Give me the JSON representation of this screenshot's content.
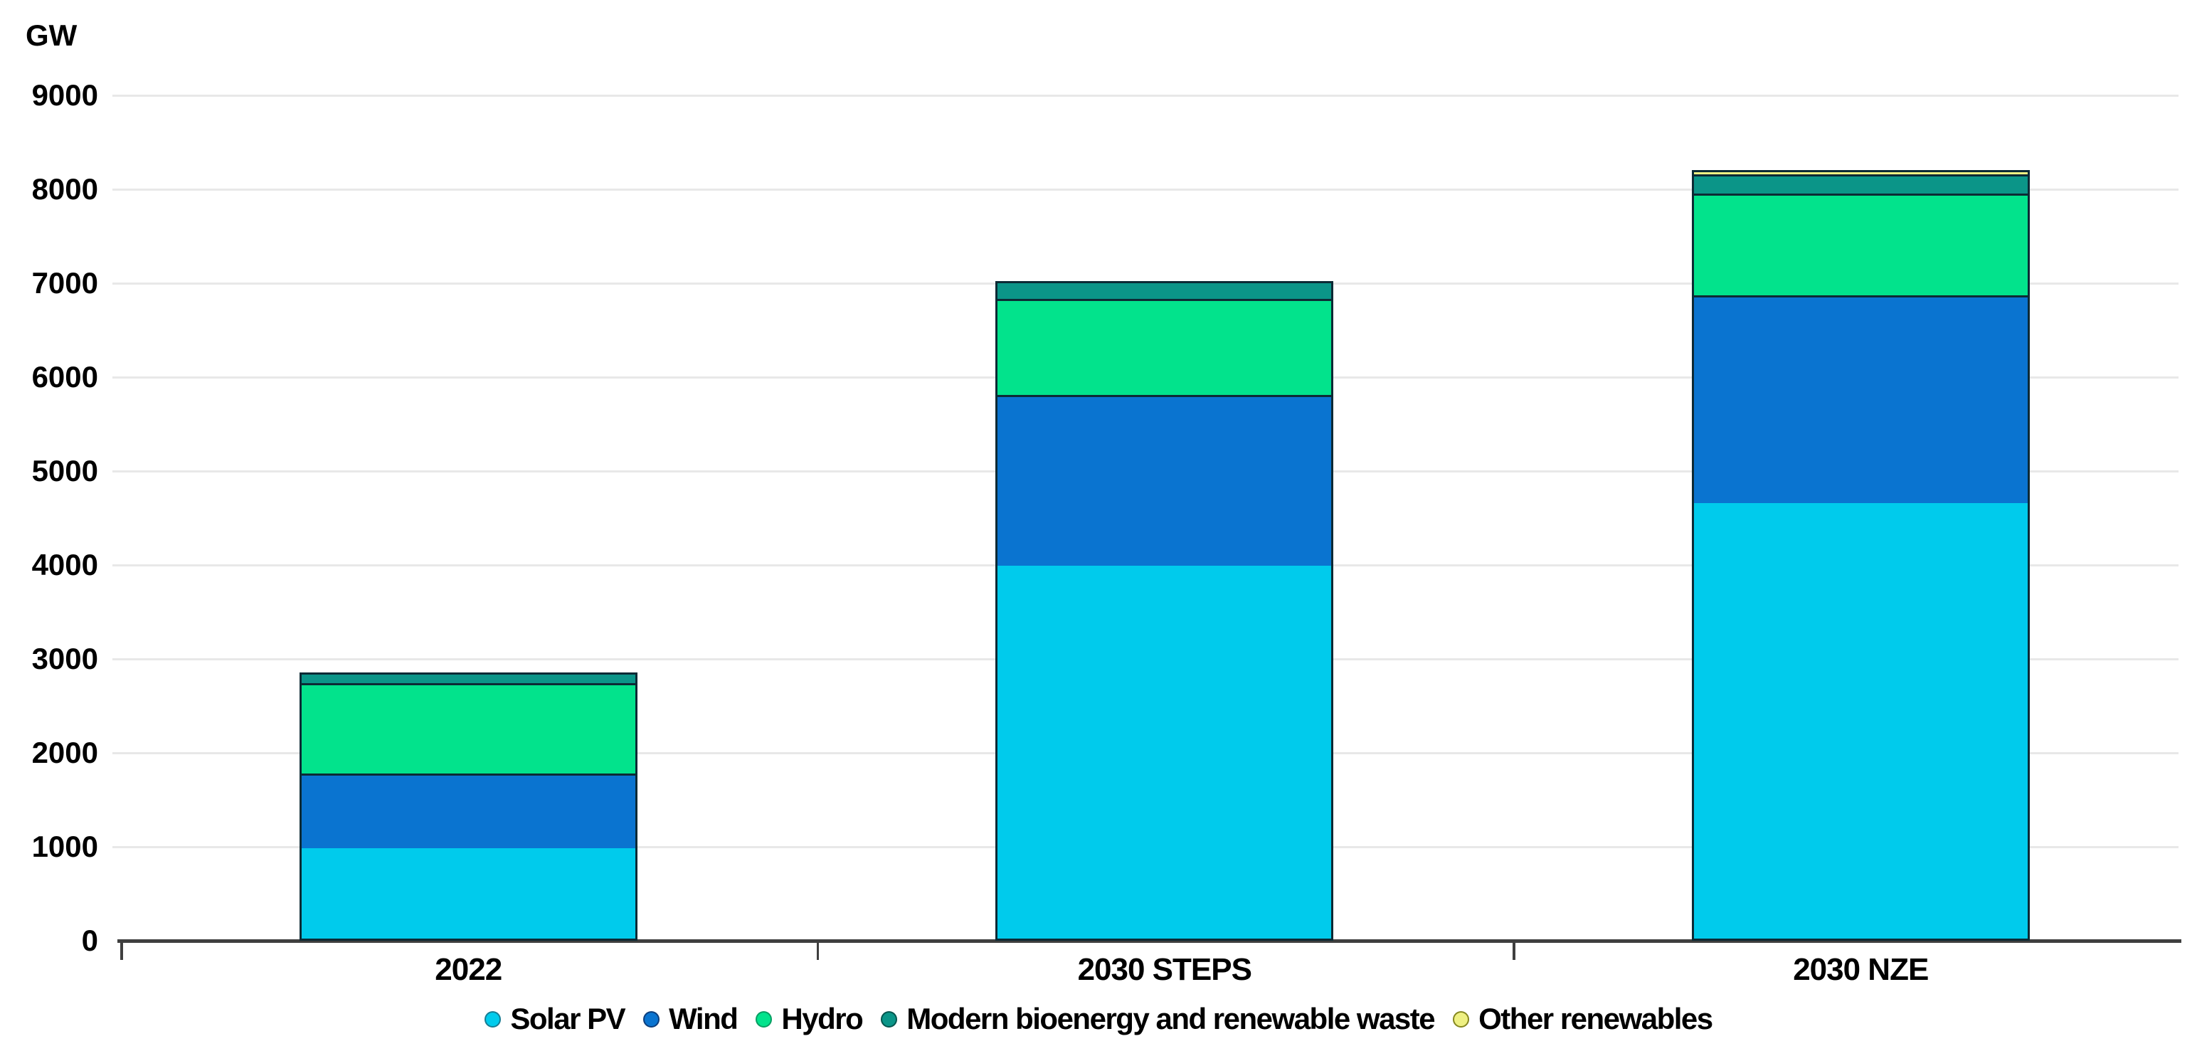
{
  "chart_data": {
    "type": "bar",
    "stacked": true,
    "unit_label": "GW",
    "categories": [
      "2022",
      "2030 STEPS",
      "2030 NZE"
    ],
    "series": [
      {
        "name": "Solar PV",
        "color": "#00cbec",
        "outline": "#167d94",
        "values": [
          960,
          3970,
          4640
        ]
      },
      {
        "name": "Wind",
        "color": "#0a74d0",
        "outline": "#0d3e7c",
        "values": [
          800,
          1820,
          2210
        ]
      },
      {
        "name": "Hydro",
        "color": "#02e38c",
        "outline": "#089e63",
        "values": [
          960,
          1020,
          1080
        ]
      },
      {
        "name": "Modern bioenergy and renewable waste",
        "color": "#0b9588",
        "outline": "#04554e",
        "values": [
          110,
          190,
          205
        ]
      },
      {
        "name": "Other renewables",
        "color": "#eef082",
        "outline": "#85871f",
        "values": [
          0,
          0,
          45
        ]
      }
    ],
    "ylim": [
      0,
      9000
    ],
    "ytick_interval": 1000,
    "yticks": [
      9000,
      8000,
      7000,
      6000,
      5000,
      4000,
      3000,
      2000,
      1000,
      0
    ],
    "grid": true,
    "legend_position": "bottom",
    "colors": {
      "grid": "#e8e8e8",
      "axis": "#3f3f3f",
      "segment_border": "#0d2a35",
      "text": "#000000",
      "background": "#ffffff"
    }
  }
}
